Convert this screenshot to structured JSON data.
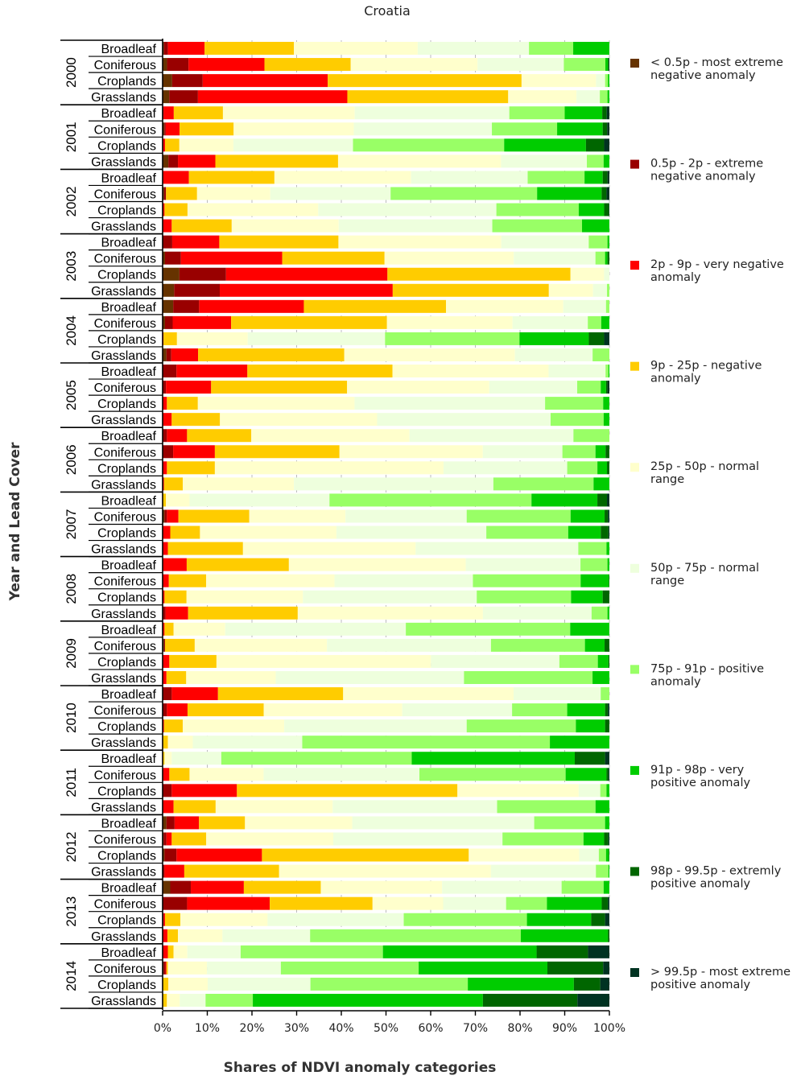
{
  "chart_data": {
    "type": "bar",
    "orientation": "horizontal",
    "stacked": "percent",
    "title": "Croatia",
    "xlabel": "Shares of NDVI anomaly categories",
    "ylabel": "Year and Lead Cover",
    "xlim": [
      0,
      100
    ],
    "xticks": [
      "0%",
      "10%",
      "20%",
      "30%",
      "40%",
      "50%",
      "60%",
      "70%",
      "80%",
      "90%",
      "100%"
    ],
    "grid": "vertical dashed at ticks",
    "legend_position": "right",
    "years": [
      "2000",
      "2001",
      "2002",
      "2003",
      "2004",
      "2005",
      "2006",
      "2007",
      "2008",
      "2009",
      "2010",
      "2011",
      "2012",
      "2013",
      "2014"
    ],
    "land_covers": [
      "Broadleaf",
      "Coniferous",
      "Croplands",
      "Grasslands"
    ],
    "series": [
      {
        "name": "< 0.5p - most extreme negative anomaly",
        "color": "#663300"
      },
      {
        "name": "0.5p - 2p - extreme negative anomaly",
        "color": "#990000"
      },
      {
        "name": "2p - 9p - very negative anomaly",
        "color": "#ff0000"
      },
      {
        "name": "9p - 25p - negative anomaly",
        "color": "#ffcc00"
      },
      {
        "name": "25p - 50p - normal range",
        "color": "#ffffcc"
      },
      {
        "name": "50p - 75p - normal range",
        "color": "#eeffdd"
      },
      {
        "name": "75p - 91p - positive anomaly",
        "color": "#99ff66"
      },
      {
        "name": "91p - 98p - very positive anomaly",
        "color": "#00cc00"
      },
      {
        "name": "98p - 99.5p - extremly positive anomaly",
        "color": "#006600"
      },
      {
        "name": "> 99.5p - most extreme positive anomaly",
        "color": "#003322"
      }
    ],
    "bars": [
      {
        "year": "2000",
        "cover": "Broadleaf",
        "values": [
          0.3,
          0.9,
          8.2,
          20.0,
          27.7,
          24.9,
          9.9,
          8.1,
          0.0,
          0.0
        ]
      },
      {
        "year": "2000",
        "cover": "Coniferous",
        "values": [
          1.0,
          4.8,
          17.0,
          19.3,
          28.4,
          19.3,
          9.3,
          0.6,
          0.2,
          0.1
        ]
      },
      {
        "year": "2000",
        "cover": "Croplands",
        "values": [
          2.0,
          6.4,
          26.2,
          40.6,
          15.6,
          1.9,
          0.6,
          0.3,
          0.0,
          0.0
        ]
      },
      {
        "year": "2000",
        "cover": "Grasslands",
        "values": [
          1.4,
          6.0,
          31.3,
          33.7,
          14.3,
          4.9,
          1.6,
          0.4,
          0.0,
          0.0
        ]
      },
      {
        "year": "2001",
        "cover": "Broadleaf",
        "values": [
          0.0,
          0.2,
          2.3,
          11.0,
          29.5,
          34.6,
          12.4,
          8.4,
          1.0,
          0.6
        ]
      },
      {
        "year": "2001",
        "cover": "Coniferous",
        "values": [
          0.4,
          0.3,
          3.1,
          12.1,
          26.9,
          30.9,
          14.6,
          10.2,
          1.0,
          0.5
        ]
      },
      {
        "year": "2001",
        "cover": "Croplands",
        "values": [
          0.0,
          0.0,
          0.5,
          3.0,
          11.3,
          25.0,
          31.6,
          17.1,
          3.8,
          1.1
        ]
      },
      {
        "year": "2001",
        "cover": "Grasslands",
        "values": [
          1.2,
          2.0,
          7.8,
          25.6,
          34.0,
          17.9,
          3.5,
          1.2,
          0.0,
          0.0
        ]
      },
      {
        "year": "2002",
        "cover": "Broadleaf",
        "values": [
          0.0,
          0.0,
          5.5,
          17.9,
          28.6,
          24.4,
          11.9,
          3.8,
          1.0,
          0.4
        ]
      },
      {
        "year": "2002",
        "cover": "Coniferous",
        "values": [
          0.3,
          0.4,
          0.0,
          6.4,
          15.1,
          24.8,
          30.2,
          13.3,
          1.0,
          0.6
        ]
      },
      {
        "year": "2002",
        "cover": "Croplands",
        "values": [
          0.0,
          0.0,
          0.4,
          4.8,
          27.3,
          37.2,
          17.2,
          5.3,
          1.0,
          0.1
        ]
      },
      {
        "year": "2002",
        "cover": "Grasslands",
        "values": [
          0.0,
          0.0,
          1.9,
          12.5,
          22.3,
          32.0,
          18.7,
          5.7,
          0.0,
          0.0
        ]
      },
      {
        "year": "2003",
        "cover": "Broadleaf",
        "values": [
          0.0,
          2.0,
          9.8,
          24.8,
          33.9,
          18.2,
          3.9,
          0.4,
          0.0,
          0.0
        ]
      },
      {
        "year": "2003",
        "cover": "Coniferous",
        "values": [
          0.5,
          3.3,
          21.1,
          21.3,
          26.9,
          17.0,
          2.0,
          0.5,
          0.4,
          0.0
        ]
      },
      {
        "year": "2003",
        "cover": "Croplands",
        "values": [
          3.5,
          9.7,
          33.6,
          38.1,
          7.0,
          1.1,
          0.0,
          0.0,
          0.0,
          0.0
        ]
      },
      {
        "year": "2003",
        "cover": "Grasslands",
        "values": [
          2.4,
          9.5,
          36.0,
          32.5,
          9.2,
          2.9,
          0.5,
          0.0,
          0.0,
          0.0
        ]
      },
      {
        "year": "2004",
        "cover": "Broadleaf",
        "values": [
          2.2,
          5.4,
          21.8,
          29.6,
          24.4,
          8.9,
          0.7,
          0.0,
          0.0,
          0.0
        ]
      },
      {
        "year": "2004",
        "cover": "Coniferous",
        "values": [
          0.5,
          1.6,
          12.2,
          32.5,
          26.2,
          15.7,
          2.8,
          1.7,
          0.0,
          0.0
        ]
      },
      {
        "year": "2004",
        "cover": "Croplands",
        "values": [
          0.0,
          0.0,
          0.2,
          2.8,
          14.8,
          28.7,
          28.1,
          14.5,
          3.2,
          1.1
        ]
      },
      {
        "year": "2004",
        "cover": "Grasslands",
        "values": [
          0.8,
          1.0,
          5.6,
          30.5,
          35.6,
          16.2,
          3.5,
          0.0,
          0.0,
          0.0
        ]
      },
      {
        "year": "2005",
        "cover": "Broadleaf",
        "values": [
          0.0,
          2.9,
          14.8,
          30.3,
          32.6,
          11.9,
          0.6,
          0.2,
          0.0,
          0.0
        ]
      },
      {
        "year": "2005",
        "cover": "Coniferous",
        "values": [
          0.0,
          0.7,
          9.4,
          28.3,
          29.6,
          18.3,
          4.9,
          1.1,
          0.3,
          0.4
        ]
      },
      {
        "year": "2005",
        "cover": "Croplands",
        "values": [
          0.0,
          0.0,
          0.9,
          6.5,
          32.9,
          40.0,
          12.2,
          1.3,
          0.0,
          0.0
        ]
      },
      {
        "year": "2005",
        "cover": "Grasslands",
        "values": [
          0.0,
          0.0,
          1.9,
          10.1,
          32.9,
          36.3,
          11.1,
          1.2,
          0.0,
          0.0
        ]
      },
      {
        "year": "2006",
        "cover": "Broadleaf",
        "values": [
          0.0,
          0.9,
          4.2,
          13.4,
          33.0,
          34.2,
          7.5,
          0.0,
          0.0,
          0.0
        ]
      },
      {
        "year": "2006",
        "cover": "Coniferous",
        "values": [
          0.0,
          2.2,
          8.7,
          26.0,
          29.9,
          16.6,
          6.9,
          2.1,
          0.8,
          0.0
        ]
      },
      {
        "year": "2006",
        "cover": "Croplands",
        "values": [
          0.0,
          0.0,
          0.9,
          10.0,
          47.7,
          25.8,
          6.3,
          2.0,
          0.5,
          0.0
        ]
      },
      {
        "year": "2006",
        "cover": "Grasslands",
        "values": [
          0.0,
          0.0,
          0.3,
          3.9,
          23.2,
          41.6,
          20.9,
          3.3,
          0.0,
          0.0
        ]
      },
      {
        "year": "2007",
        "cover": "Broadleaf",
        "values": [
          0.0,
          0.0,
          0.0,
          0.7,
          4.9,
          29.1,
          42.0,
          13.7,
          2.0,
          0.5
        ]
      },
      {
        "year": "2007",
        "cover": "Coniferous",
        "values": [
          0.4,
          0.5,
          2.4,
          14.8,
          20.1,
          25.3,
          21.7,
          7.1,
          0.7,
          0.3
        ]
      },
      {
        "year": "2007",
        "cover": "Croplands",
        "values": [
          0.0,
          0.0,
          1.6,
          6.2,
          28.5,
          31.3,
          17.1,
          6.8,
          1.6,
          0.2
        ]
      },
      {
        "year": "2007",
        "cover": "Grasslands",
        "values": [
          0.0,
          0.0,
          1.1,
          15.7,
          36.1,
          34.0,
          5.9,
          0.6,
          0.0,
          0.0
        ]
      },
      {
        "year": "2008",
        "cover": "Broadleaf",
        "values": [
          0.0,
          0.0,
          5.0,
          21.2,
          36.7,
          23.8,
          5.6,
          0.4,
          0.0,
          0.0
        ]
      },
      {
        "year": "2008",
        "cover": "Coniferous",
        "values": [
          0.0,
          0.0,
          1.3,
          7.8,
          26.8,
          28.9,
          22.5,
          5.9,
          0.1,
          0.0
        ]
      },
      {
        "year": "2008",
        "cover": "Croplands",
        "values": [
          0.0,
          0.0,
          0.4,
          4.6,
          24.3,
          36.3,
          19.7,
          6.6,
          1.4,
          0.0
        ]
      },
      {
        "year": "2008",
        "cover": "Grasslands",
        "values": [
          0.0,
          0.6,
          4.7,
          22.8,
          38.5,
          22.6,
          3.3,
          0.4,
          0.0,
          0.0
        ]
      },
      {
        "year": "2009",
        "cover": "Broadleaf",
        "values": [
          0.0,
          0.0,
          0.4,
          1.9,
          10.8,
          37.8,
          34.4,
          8.2,
          0.0,
          0.0
        ]
      },
      {
        "year": "2009",
        "cover": "Coniferous",
        "values": [
          0.3,
          0.2,
          0.0,
          6.2,
          27.6,
          34.2,
          19.6,
          4.1,
          1.0,
          0.0
        ]
      },
      {
        "year": "2009",
        "cover": "Croplands",
        "values": [
          0.0,
          0.0,
          1.4,
          9.8,
          44.6,
          26.7,
          8.0,
          2.2,
          0.2,
          0.0
        ]
      },
      {
        "year": "2009",
        "cover": "Grasslands",
        "values": [
          0.0,
          0.0,
          0.8,
          4.1,
          18.6,
          39.1,
          26.7,
          3.5,
          0.0,
          0.0
        ]
      },
      {
        "year": "2010",
        "cover": "Broadleaf",
        "values": [
          0.0,
          1.9,
          9.6,
          26.0,
          35.4,
          18.1,
          1.8,
          0.0,
          0.0,
          0.0
        ]
      },
      {
        "year": "2010",
        "cover": "Coniferous",
        "values": [
          0.0,
          0.9,
          4.3,
          15.9,
          28.9,
          22.9,
          11.5,
          7.9,
          0.6,
          0.3
        ]
      },
      {
        "year": "2010",
        "cover": "Croplands",
        "values": [
          0.0,
          0.0,
          0.3,
          3.9,
          21.2,
          38.1,
          22.8,
          6.1,
          0.9,
          0.0
        ]
      },
      {
        "year": "2010",
        "cover": "Grasslands",
        "values": [
          0.0,
          0.0,
          0.0,
          1.1,
          5.2,
          22.8,
          51.6,
          12.4,
          0.0,
          0.0
        ]
      },
      {
        "year": "2011",
        "cover": "Broadleaf",
        "values": [
          0.0,
          0.0,
          0.0,
          0.4,
          1.5,
          10.3,
          39.6,
          33.9,
          6.3,
          0.9
        ]
      },
      {
        "year": "2011",
        "cover": "Coniferous",
        "values": [
          0.0,
          0.0,
          1.4,
          4.2,
          15.4,
          32.4,
          30.4,
          8.5,
          0.4,
          0.2
        ]
      },
      {
        "year": "2011",
        "cover": "Croplands",
        "values": [
          0.0,
          1.9,
          13.6,
          46.0,
          25.3,
          4.5,
          1.3,
          0.6,
          0.0,
          0.0
        ]
      },
      {
        "year": "2011",
        "cover": "Grasslands",
        "values": [
          0.0,
          0.0,
          2.3,
          8.8,
          24.5,
          34.4,
          20.6,
          2.9,
          0.0,
          0.0
        ]
      },
      {
        "year": "2012",
        "cover": "Broadleaf",
        "values": [
          0.8,
          1.7,
          5.1,
          9.6,
          22.4,
          38.0,
          14.8,
          0.9,
          0.0,
          0.0
        ]
      },
      {
        "year": "2012",
        "cover": "Coniferous",
        "values": [
          0.2,
          0.6,
          1.1,
          7.2,
          26.5,
          35.3,
          16.9,
          4.3,
          0.9,
          0.2
        ]
      },
      {
        "year": "2012",
        "cover": "Croplands",
        "values": [
          0.4,
          2.5,
          17.8,
          43.1,
          23.0,
          4.1,
          1.5,
          0.6,
          0.1,
          0.0
        ]
      },
      {
        "year": "2012",
        "cover": "Grasslands",
        "values": [
          0.0,
          0.4,
          4.1,
          19.7,
          44.0,
          21.8,
          2.6,
          0.2,
          0.0,
          0.0
        ]
      },
      {
        "year": "2013",
        "cover": "Broadleaf",
        "values": [
          1.6,
          4.3,
          11.1,
          16.1,
          25.4,
          25.0,
          8.8,
          1.2,
          0.0,
          0.0
        ]
      },
      {
        "year": "2013",
        "cover": "Coniferous",
        "values": [
          0.0,
          5.1,
          17.2,
          21.4,
          14.7,
          13.1,
          8.5,
          11.4,
          1.3,
          0.3
        ]
      },
      {
        "year": "2013",
        "cover": "Croplands",
        "values": [
          0.0,
          0.2,
          0.3,
          3.2,
          18.2,
          28.4,
          25.7,
          13.4,
          2.9,
          0.9
        ]
      },
      {
        "year": "2013",
        "cover": "Grasslands",
        "values": [
          0.0,
          0.0,
          1.0,
          2.2,
          9.3,
          18.3,
          44.0,
          18.2,
          0.3,
          0.0
        ]
      },
      {
        "year": "2014",
        "cover": "Broadleaf",
        "values": [
          0.0,
          0.0,
          1.1,
          1.2,
          2.9,
          11.2,
          29.9,
          32.3,
          10.8,
          4.5
        ]
      },
      {
        "year": "2014",
        "cover": "Coniferous",
        "values": [
          0.2,
          0.4,
          0.2,
          0.3,
          8.2,
          15.5,
          28.9,
          27.0,
          11.7,
          1.3
        ]
      },
      {
        "year": "2014",
        "cover": "Croplands",
        "values": [
          0.0,
          0.0,
          0.0,
          1.2,
          8.2,
          21.4,
          32.8,
          22.1,
          5.5,
          1.9
        ]
      },
      {
        "year": "2014",
        "cover": "Grasslands",
        "values": [
          0.0,
          0.0,
          0.0,
          0.9,
          2.7,
          5.4,
          9.9,
          48.2,
          19.8,
          6.7
        ]
      }
    ]
  }
}
